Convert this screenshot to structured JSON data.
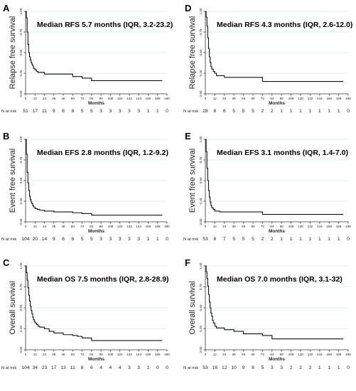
{
  "chart_data": [
    {
      "id": "A",
      "type": "line",
      "panel_label": "A",
      "annotation": "Median RFS 5.7 months (IQR, 3.2-23.2)",
      "ylabel": "Relapse free survival",
      "xlabel": "Months",
      "at_risk_label": "N at risk",
      "ylim": [
        0,
        1
      ],
      "xlim": [
        0,
        180
      ],
      "yticks": [
        "0.00",
        "0.25",
        "0.50",
        "0.75",
        "1.00"
      ],
      "xticks": [
        "0",
        "12",
        "24",
        "36",
        "48",
        "60",
        "72",
        "84",
        "96",
        "108",
        "120",
        "132",
        "144",
        "156",
        "168",
        "180"
      ],
      "at_risk": [
        "51",
        "17",
        "11",
        "9",
        "8",
        "8",
        "5",
        "5",
        "3",
        "3",
        "3",
        "3",
        "3",
        "1",
        "1",
        "0"
      ],
      "grid": true,
      "series": [
        {
          "x": [
            0,
            1,
            2,
            3,
            4,
            5,
            6,
            7,
            8,
            9,
            10,
            12,
            14,
            16,
            24,
            60,
            72,
            84,
            174
          ],
          "y": [
            1.0,
            0.92,
            0.75,
            0.6,
            0.5,
            0.45,
            0.41,
            0.38,
            0.36,
            0.34,
            0.31,
            0.29,
            0.27,
            0.26,
            0.24,
            0.21,
            0.19,
            0.16,
            0.16
          ]
        }
      ]
    },
    {
      "id": "D",
      "type": "line",
      "panel_label": "D",
      "annotation": "Median RFS 4.3 months (IQR, 2.6-12.0)",
      "ylabel": "Relapse free survival",
      "xlabel": "Months",
      "at_risk_label": "N at risk",
      "ylim": [
        0,
        1
      ],
      "xlim": [
        0,
        180
      ],
      "yticks": [
        "0.00",
        "0.25",
        "0.50",
        "0.75",
        "1.00"
      ],
      "xticks": [
        "0",
        "12",
        "24",
        "36",
        "48",
        "60",
        "72",
        "84",
        "96",
        "108",
        "120",
        "132",
        "144",
        "156",
        "168",
        "180"
      ],
      "at_risk": [
        "28",
        "8",
        "6",
        "5",
        "5",
        "5",
        "2",
        "2",
        "1",
        "1",
        "1",
        "1",
        "1",
        "1",
        "1",
        "0"
      ],
      "grid": true,
      "series": [
        {
          "x": [
            0,
            1,
            2,
            3,
            4,
            5,
            6,
            7,
            8,
            10,
            12,
            14,
            24,
            72,
            174
          ],
          "y": [
            1.0,
            0.93,
            0.82,
            0.68,
            0.55,
            0.45,
            0.38,
            0.33,
            0.3,
            0.27,
            0.25,
            0.22,
            0.2,
            0.15,
            0.15
          ]
        }
      ]
    },
    {
      "id": "B",
      "type": "line",
      "panel_label": "B",
      "annotation": "Median EFS 2.8 months (IQR, 1.2-9.2)",
      "ylabel": "Event free survival",
      "xlabel": "Months",
      "at_risk_label": "N at risk",
      "ylim": [
        0,
        1
      ],
      "xlim": [
        0,
        180
      ],
      "yticks": [
        "0.00",
        "0.25",
        "0.50",
        "0.75",
        "1.00"
      ],
      "xticks": [
        "0",
        "12",
        "24",
        "36",
        "48",
        "60",
        "72",
        "84",
        "96",
        "108",
        "120",
        "132",
        "144",
        "156",
        "168",
        "180"
      ],
      "at_risk": [
        "104",
        "20",
        "14",
        "9",
        "8",
        "6",
        "5",
        "5",
        "3",
        "3",
        "3",
        "3",
        "3",
        "1",
        "1",
        "0"
      ],
      "grid": true,
      "series": [
        {
          "x": [
            0,
            1,
            2,
            3,
            4,
            5,
            6,
            7,
            8,
            9,
            10,
            12,
            15,
            18,
            24,
            36,
            48,
            60,
            72,
            84,
            174
          ],
          "y": [
            1.0,
            0.82,
            0.6,
            0.47,
            0.38,
            0.31,
            0.27,
            0.24,
            0.22,
            0.2,
            0.18,
            0.16,
            0.15,
            0.14,
            0.13,
            0.12,
            0.12,
            0.11,
            0.1,
            0.08,
            0.08
          ]
        }
      ]
    },
    {
      "id": "E",
      "type": "line",
      "panel_label": "E",
      "annotation": "Median EFS 3.1 months (IQR, 1.4-7.0)",
      "ylabel": "Event free survival",
      "xlabel": "Months",
      "at_risk_label": "N at risk",
      "ylim": [
        0,
        1
      ],
      "xlim": [
        0,
        180
      ],
      "yticks": [
        "0.00",
        "0.25",
        "0.50",
        "0.75",
        "1.00"
      ],
      "xticks": [
        "0",
        "12",
        "24",
        "36",
        "48",
        "60",
        "72",
        "84",
        "96",
        "108",
        "120",
        "132",
        "144",
        "156",
        "168",
        "180"
      ],
      "at_risk": [
        "53",
        "8",
        "7",
        "5",
        "5",
        "5",
        "2",
        "2",
        "1",
        "1",
        "1",
        "1",
        "1",
        "1",
        "1",
        "0"
      ],
      "grid": true,
      "series": [
        {
          "x": [
            0,
            1,
            2,
            3,
            4,
            5,
            6,
            7,
            8,
            10,
            12,
            18,
            72,
            174
          ],
          "y": [
            1.0,
            0.85,
            0.65,
            0.5,
            0.38,
            0.3,
            0.24,
            0.2,
            0.17,
            0.15,
            0.13,
            0.12,
            0.09,
            0.09
          ]
        }
      ]
    },
    {
      "id": "C",
      "type": "line",
      "panel_label": "C",
      "annotation": "Median OS 7.5 months (IQR, 2.8-28.9)",
      "ylabel": "Overall survival",
      "xlabel": "Months",
      "at_risk_label": "N at risk",
      "ylim": [
        0,
        1
      ],
      "xlim": [
        0,
        180
      ],
      "yticks": [
        "0.00",
        "0.25",
        "0.50",
        "0.75",
        "1.00"
      ],
      "xticks": [
        "0",
        "12",
        "24",
        "36",
        "48",
        "60",
        "72",
        "84",
        "96",
        "108",
        "120",
        "132",
        "144",
        "156",
        "168",
        "180"
      ],
      "at_risk": [
        "104",
        "34",
        "23",
        "17",
        "13",
        "11",
        "8",
        "6",
        "4",
        "4",
        "4",
        "3",
        "3",
        "1",
        "0",
        "0"
      ],
      "grid": true,
      "series": [
        {
          "x": [
            0,
            1,
            2,
            3,
            4,
            5,
            6,
            7,
            8,
            9,
            10,
            11,
            12,
            14,
            16,
            18,
            24,
            30,
            36,
            48,
            60,
            66,
            72,
            84,
            174
          ],
          "y": [
            1.0,
            0.92,
            0.83,
            0.74,
            0.65,
            0.58,
            0.52,
            0.47,
            0.43,
            0.39,
            0.36,
            0.34,
            0.32,
            0.3,
            0.28,
            0.27,
            0.25,
            0.22,
            0.2,
            0.18,
            0.17,
            0.16,
            0.14,
            0.11,
            0.11
          ]
        }
      ]
    },
    {
      "id": "F",
      "type": "line",
      "panel_label": "F",
      "annotation": "Median OS 7.0 months (IQR, 3.1-32)",
      "ylabel": "Overall survival",
      "xlabel": "Months",
      "at_risk_label": "N at risk",
      "ylim": [
        0,
        1
      ],
      "xlim": [
        0,
        180
      ],
      "yticks": [
        "0.00",
        "0.25",
        "0.50",
        "0.75",
        "1.00"
      ],
      "xticks": [
        "0",
        "12",
        "24",
        "36",
        "48",
        "60",
        "72",
        "84",
        "96",
        "108",
        "120",
        "132",
        "144",
        "156",
        "168",
        "180"
      ],
      "at_risk": [
        "53",
        "16",
        "12",
        "10",
        "9",
        "8",
        "5",
        "3",
        "3",
        "2",
        "2",
        "2",
        "1",
        "1",
        "1",
        "0"
      ],
      "grid": true,
      "series": [
        {
          "x": [
            0,
            1,
            2,
            3,
            4,
            5,
            6,
            7,
            8,
            9,
            10,
            12,
            14,
            24,
            36,
            48,
            72,
            84,
            174
          ],
          "y": [
            1.0,
            0.93,
            0.85,
            0.76,
            0.66,
            0.57,
            0.5,
            0.44,
            0.4,
            0.35,
            0.32,
            0.28,
            0.26,
            0.24,
            0.22,
            0.19,
            0.17,
            0.13,
            0.13
          ]
        }
      ]
    }
  ]
}
